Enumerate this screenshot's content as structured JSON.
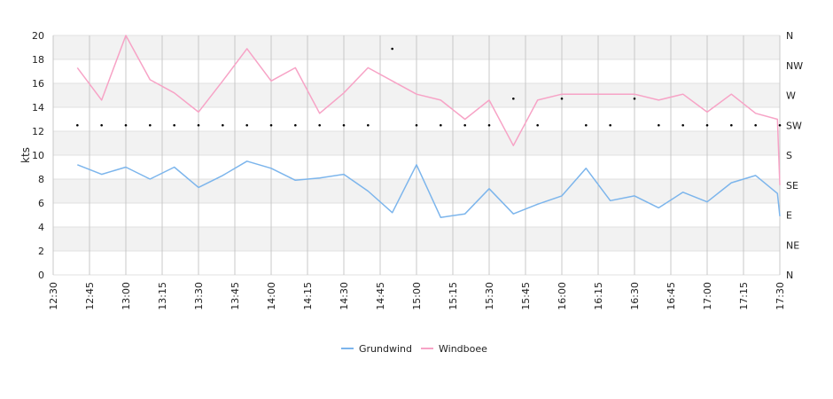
{
  "chart_data": {
    "type": "line",
    "ylabel": "kts",
    "ylim": [
      0,
      20
    ],
    "yticks": [
      0,
      2,
      4,
      6,
      8,
      10,
      12,
      14,
      16,
      18,
      20
    ],
    "xlim": [
      "12:30",
      "17:30"
    ],
    "xticks": [
      "12:30",
      "12:45",
      "13:00",
      "13:15",
      "13:30",
      "13:45",
      "14:00",
      "14:15",
      "14:30",
      "14:45",
      "15:00",
      "15:15",
      "15:30",
      "15:45",
      "16:00",
      "16:15",
      "16:30",
      "16:45",
      "17:00",
      "17:15",
      "17:30"
    ],
    "y2ticks": [
      "N",
      "NE",
      "E",
      "SE",
      "S",
      "SW",
      "W",
      "NW",
      "N"
    ],
    "grid": true,
    "legend_position": "bottom-center",
    "x": [
      "12:40",
      "12:50",
      "13:00",
      "13:10",
      "13:20",
      "13:30",
      "13:40",
      "13:50",
      "14:00",
      "14:10",
      "14:20",
      "14:30",
      "14:40",
      "14:50",
      "15:00",
      "15:10",
      "15:20",
      "15:30",
      "15:40",
      "15:50",
      "16:00",
      "16:10",
      "16:20",
      "16:30",
      "16:40",
      "16:50",
      "17:00",
      "17:10",
      "17:20",
      "17:29",
      "17:30"
    ],
    "series": [
      {
        "name": "Grundwind",
        "color": "#7cb5ec",
        "values": [
          9.2,
          8.4,
          9.0,
          8.0,
          9.0,
          7.3,
          8.3,
          9.5,
          8.9,
          7.9,
          8.1,
          8.4,
          7.0,
          5.2,
          9.2,
          4.8,
          5.1,
          7.2,
          5.1,
          5.9,
          6.6,
          8.9,
          6.2,
          6.6,
          5.6,
          6.9,
          6.1,
          7.7,
          8.3,
          6.8,
          4.9
        ]
      },
      {
        "name": "Windboee",
        "color": "#f7a3c6",
        "values": [
          17.3,
          14.6,
          20.0,
          16.3,
          15.2,
          13.6,
          16.2,
          18.9,
          16.2,
          17.3,
          13.5,
          15.2,
          17.3,
          16.2,
          15.1,
          14.6,
          13.0,
          14.6,
          10.8,
          14.6,
          15.1,
          15.1,
          15.1,
          15.1,
          14.6,
          15.1,
          13.6,
          15.1,
          13.5,
          13.0,
          7.5
        ]
      }
    ],
    "direction_points": {
      "color": "#000000",
      "x": [
        "12:40",
        "12:50",
        "13:00",
        "13:10",
        "13:20",
        "13:30",
        "13:40",
        "13:50",
        "14:00",
        "14:10",
        "14:20",
        "14:30",
        "14:40",
        "14:50",
        "15:00",
        "15:10",
        "15:20",
        "15:30",
        "15:40",
        "15:50",
        "16:00",
        "16:10",
        "16:20",
        "16:30",
        "16:40",
        "16:50",
        "17:00",
        "17:10",
        "17:20",
        "17:30"
      ],
      "degrees": [
        225,
        225,
        225,
        225,
        225,
        225,
        225,
        225,
        225,
        225,
        225,
        225,
        225,
        340,
        225,
        225,
        225,
        225,
        265,
        225,
        265,
        225,
        225,
        265,
        225,
        225,
        225,
        225,
        225,
        225
      ]
    }
  }
}
